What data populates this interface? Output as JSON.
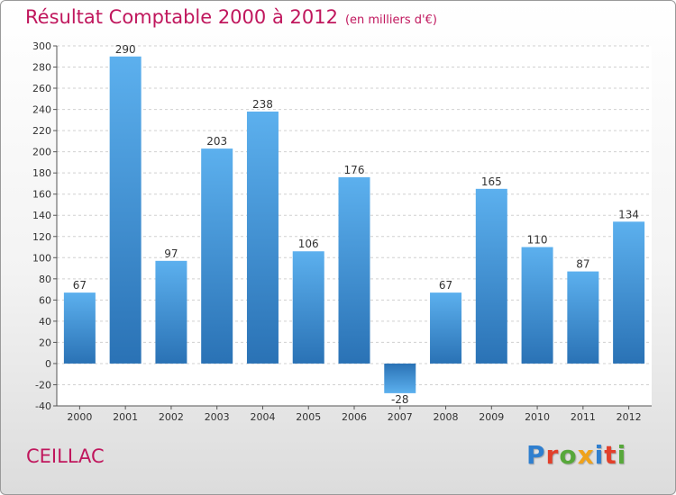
{
  "chart_data": {
    "type": "bar",
    "title": "Résultat Comptable 2000 à 2012",
    "subtitle": "(en milliers d'€)",
    "categories": [
      "2000",
      "2001",
      "2002",
      "2003",
      "2004",
      "2005",
      "2006",
      "2007",
      "2008",
      "2009",
      "2010",
      "2011",
      "2012"
    ],
    "values": [
      67,
      290,
      97,
      203,
      238,
      106,
      176,
      -28,
      67,
      165,
      110,
      87,
      134
    ],
    "ylim": [
      -40,
      300
    ],
    "yticks": [
      -40,
      -20,
      0,
      20,
      40,
      60,
      80,
      100,
      120,
      140,
      160,
      180,
      200,
      220,
      240,
      260,
      280,
      300
    ],
    "xlabel": "",
    "ylabel": "",
    "grid": true,
    "bar_color": "#3a8fd6",
    "bar_color_light": "#5cb0ee",
    "bar_color_dark": "#2a72b5",
    "title_color": "#c0175d"
  },
  "footer": {
    "commune": "CEILLAC"
  },
  "logo": {
    "letters": [
      {
        "char": "P",
        "color": "#2f7fcf"
      },
      {
        "char": "r",
        "color": "#e2402b"
      },
      {
        "char": "o",
        "color": "#57a83a"
      },
      {
        "char": "x",
        "color": "#f0a21a"
      },
      {
        "char": "i",
        "color": "#2f7fcf"
      },
      {
        "char": "t",
        "color": "#e2402b"
      },
      {
        "char": "i",
        "color": "#57a83a"
      }
    ]
  }
}
